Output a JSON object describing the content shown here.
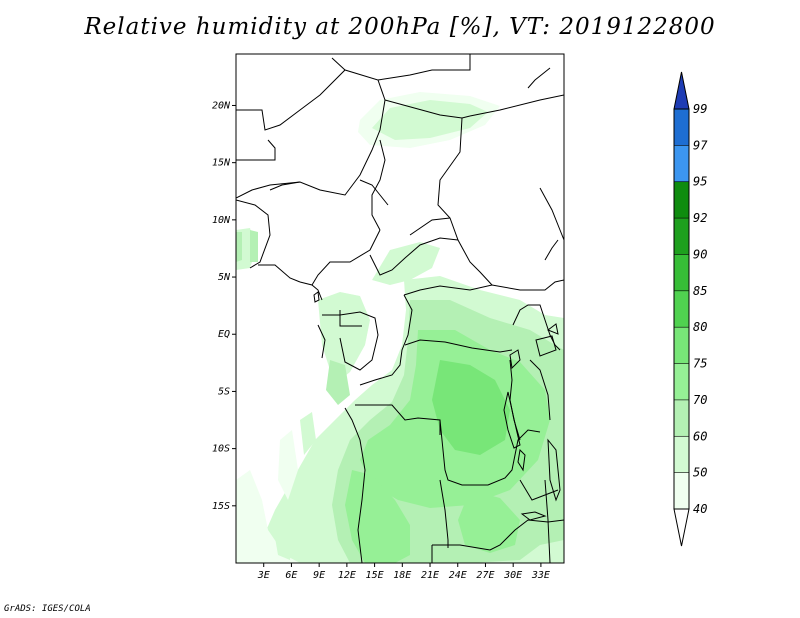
{
  "title": "Relative humidity at 200hPa [%], VT: 2019122800",
  "credit": "GrADS: IGES/COLA",
  "map": {
    "lat_labels": [
      "20N",
      "15N",
      "10N",
      "5N",
      "EQ",
      "5S",
      "10S",
      "15S"
    ],
    "lon_labels": [
      "3E",
      "6E",
      "9E",
      "12E",
      "15E",
      "18E",
      "21E",
      "24E",
      "27E",
      "30E",
      "33E"
    ],
    "lat_values": [
      20,
      15,
      10,
      5,
      0,
      -5,
      -10,
      -15
    ],
    "lon_values": [
      3,
      6,
      9,
      12,
      15,
      18,
      21,
      24,
      27,
      30,
      33
    ]
  },
  "colorbar": {
    "levels": [
      "99",
      "97",
      "95",
      "92",
      "90",
      "85",
      "80",
      "75",
      "70",
      "60",
      "50",
      "40"
    ],
    "colors": [
      "#1e64c8",
      "#1e6ed2",
      "#3c96f0",
      "#0f8c0f",
      "#1ea01e",
      "#37be37",
      "#50d250",
      "#78e678",
      "#96f096",
      "#b4f0b4",
      "#d2fad2",
      "#f0fff0"
    ],
    "upper_arrow_color": "#1e3cb4",
    "lower_arrow_color": "#ffffff"
  }
}
